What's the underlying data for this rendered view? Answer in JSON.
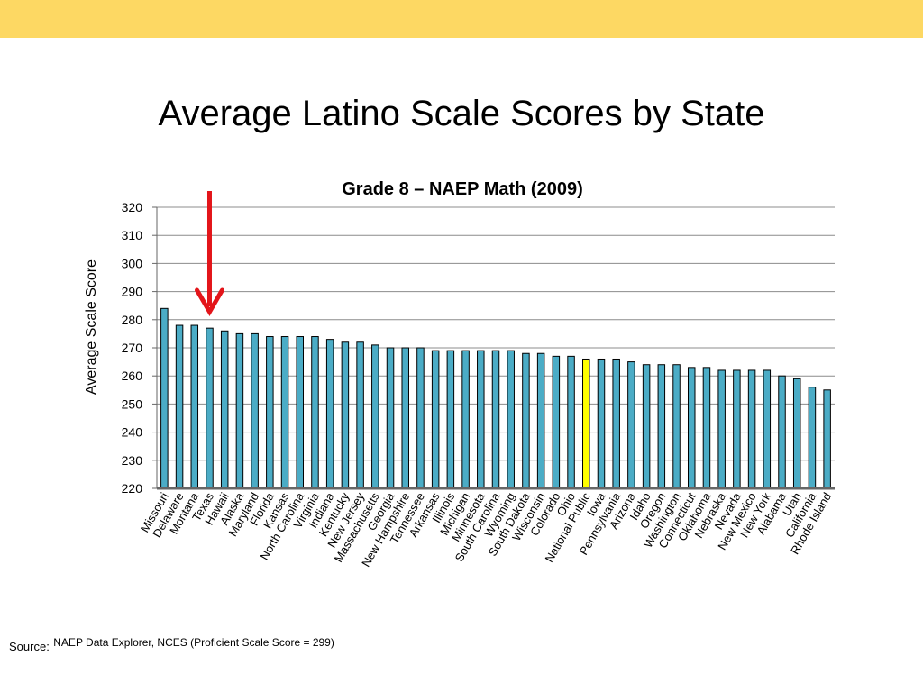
{
  "slide": {
    "title": "Average Latino Scale Scores by State",
    "band_color": "#FDD863"
  },
  "source": {
    "label": "Source:",
    "text": "NAEP Data Explorer, NCES (Proficient Scale Score = 299)"
  },
  "arrow": {
    "color": "#E3151A",
    "points_to": "Texas"
  },
  "chart_data": {
    "type": "bar",
    "title": "Grade 8 – NAEP Math (2009)",
    "xlabel": "",
    "ylabel": "Average Scale Score",
    "ylim": [
      220,
      320
    ],
    "yticks": [
      220,
      230,
      240,
      250,
      260,
      270,
      280,
      290,
      300,
      310,
      320
    ],
    "grid": true,
    "bar_color": "#4BACC6",
    "highlight_color": "#FFFF00",
    "highlight_category": "National Public",
    "categories": [
      "Missouri",
      "Delaware",
      "Montana",
      "Texas",
      "Hawaii",
      "Alaska",
      "Maryland",
      "Florida",
      "Kansas",
      "North Carolina",
      "Virginia",
      "Indiana",
      "Kentucky",
      "New Jersey",
      "Massachusetts",
      "Georgia",
      "New Hampshire",
      "Tennessee",
      "Arkansas",
      "Illinois",
      "Michigan",
      "Minnesota",
      "South Carolina",
      "Wyoming",
      "South Dakota",
      "Wisconsin",
      "Colorado",
      "Ohio",
      "National Public",
      "Iowa",
      "Pennsylvania",
      "Arizona",
      "Idaho",
      "Oregon",
      "Washington",
      "Connecticut",
      "Oklahoma",
      "Nebraska",
      "Nevada",
      "New Mexico",
      "New York",
      "Alabama",
      "Utah",
      "California",
      "Rhode Island"
    ],
    "values": [
      284,
      278,
      278,
      277,
      276,
      275,
      275,
      274,
      274,
      274,
      274,
      273,
      272,
      272,
      271,
      270,
      270,
      270,
      269,
      269,
      269,
      269,
      269,
      269,
      268,
      268,
      267,
      267,
      266,
      266,
      266,
      265,
      264,
      264,
      264,
      263,
      263,
      262,
      262,
      262,
      262,
      260,
      259,
      256,
      255
    ]
  }
}
